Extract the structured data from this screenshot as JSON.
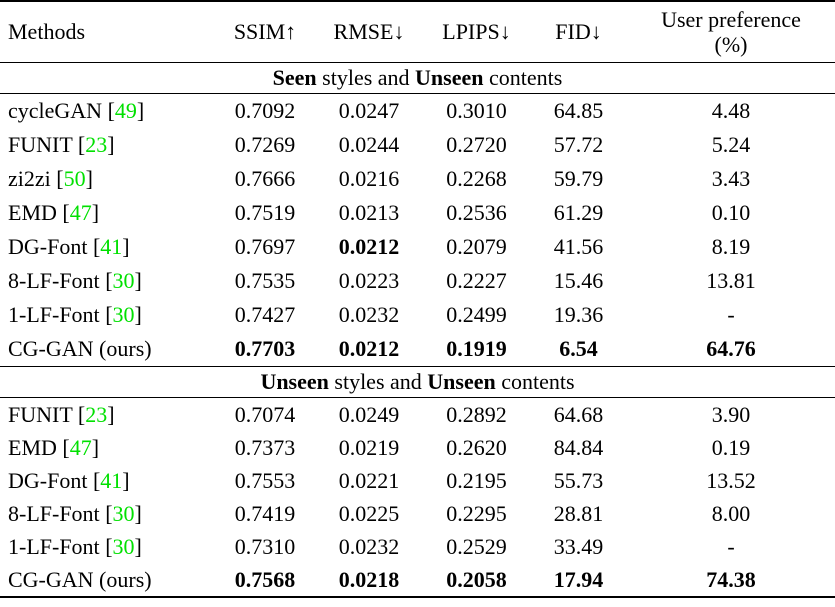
{
  "colors": {
    "citation_link": "#00E000",
    "text": "#000000",
    "background": "#FFFFFF"
  },
  "table": {
    "columns": [
      {
        "label": "Methods"
      },
      {
        "label": "SSIM↑"
      },
      {
        "label": "RMSE↓"
      },
      {
        "label": "LPIPS↓"
      },
      {
        "label": "FID↓"
      },
      {
        "label": "User preference (%)"
      }
    ],
    "sections": [
      {
        "title_parts": [
          {
            "text": "Seen",
            "bold": true
          },
          {
            "text": " styles and ",
            "bold": false
          },
          {
            "text": "Unseen",
            "bold": true
          },
          {
            "text": " contents",
            "bold": false
          }
        ],
        "rows": [
          {
            "method": "cycleGAN",
            "cite": "49",
            "values": [
              "0.7092",
              "0.0247",
              "0.3010",
              "64.85",
              "4.48"
            ],
            "bold_values": [
              false,
              false,
              false,
              false,
              false
            ]
          },
          {
            "method": "FUNIT",
            "cite": "23",
            "values": [
              "0.7269",
              "0.0244",
              "0.2720",
              "57.72",
              "5.24"
            ],
            "bold_values": [
              false,
              false,
              false,
              false,
              false
            ]
          },
          {
            "method": "zi2zi",
            "cite": "50",
            "values": [
              "0.7666",
              "0.0216",
              "0.2268",
              "59.79",
              "3.43"
            ],
            "bold_values": [
              false,
              false,
              false,
              false,
              false
            ]
          },
          {
            "method": "EMD",
            "cite": "47",
            "values": [
              "0.7519",
              "0.0213",
              "0.2536",
              "61.29",
              "0.10"
            ],
            "bold_values": [
              false,
              false,
              false,
              false,
              false
            ]
          },
          {
            "method": "DG-Font",
            "cite": "41",
            "values": [
              "0.7697",
              "0.0212",
              "0.2079",
              "41.56",
              "8.19"
            ],
            "bold_values": [
              false,
              true,
              false,
              false,
              false
            ]
          },
          {
            "method": "8-LF-Font",
            "cite": "30",
            "values": [
              "0.7535",
              "0.0223",
              "0.2227",
              "15.46",
              "13.81"
            ],
            "bold_values": [
              false,
              false,
              false,
              false,
              false
            ]
          },
          {
            "method": "1-LF-Font",
            "cite": "30",
            "values": [
              "0.7427",
              "0.0232",
              "0.2499",
              "19.36",
              "-"
            ],
            "bold_values": [
              false,
              false,
              false,
              false,
              false
            ]
          },
          {
            "method": "CG-GAN (ours)",
            "cite": null,
            "values": [
              "0.7703",
              "0.0212",
              "0.1919",
              "6.54",
              "64.76"
            ],
            "bold_values": [
              true,
              true,
              true,
              true,
              true
            ]
          }
        ]
      },
      {
        "title_parts": [
          {
            "text": "Unseen",
            "bold": true
          },
          {
            "text": " styles and ",
            "bold": false
          },
          {
            "text": "Unseen",
            "bold": true
          },
          {
            "text": " contents",
            "bold": false
          }
        ],
        "rows": [
          {
            "method": "FUNIT",
            "cite": "23",
            "values": [
              "0.7074",
              "0.0249",
              "0.2892",
              "64.68",
              "3.90"
            ],
            "bold_values": [
              false,
              false,
              false,
              false,
              false
            ]
          },
          {
            "method": "EMD",
            "cite": "47",
            "values": [
              "0.7373",
              "0.0219",
              "0.2620",
              "84.84",
              "0.19"
            ],
            "bold_values": [
              false,
              false,
              false,
              false,
              false
            ]
          },
          {
            "method": "DG-Font",
            "cite": "41",
            "values": [
              "0.7553",
              "0.0221",
              "0.2195",
              "55.73",
              "13.52"
            ],
            "bold_values": [
              false,
              false,
              false,
              false,
              false
            ]
          },
          {
            "method": "8-LF-Font",
            "cite": "30",
            "values": [
              "0.7419",
              "0.0225",
              "0.2295",
              "28.81",
              "8.00"
            ],
            "bold_values": [
              false,
              false,
              false,
              false,
              false
            ]
          },
          {
            "method": "1-LF-Font",
            "cite": "30",
            "values": [
              "0.7310",
              "0.0232",
              "0.2529",
              "33.49",
              "-"
            ],
            "bold_values": [
              false,
              false,
              false,
              false,
              false
            ]
          },
          {
            "method": "CG-GAN (ours)",
            "cite": null,
            "values": [
              "0.7568",
              "0.0218",
              "0.2058",
              "17.94",
              "74.38"
            ],
            "bold_values": [
              true,
              true,
              true,
              true,
              true
            ]
          }
        ]
      }
    ]
  }
}
